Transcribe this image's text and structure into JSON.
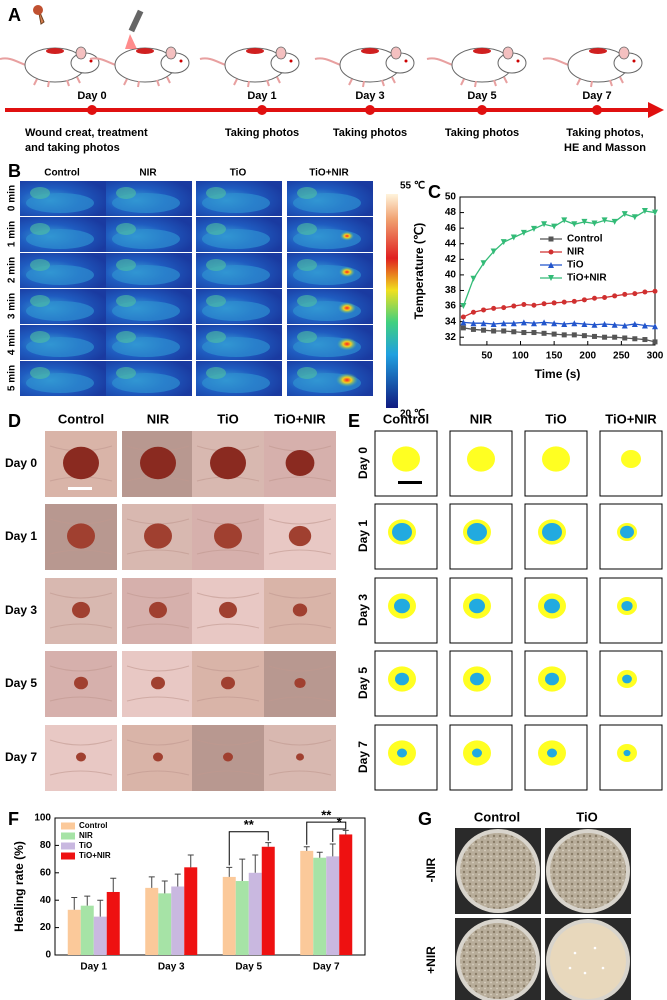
{
  "panel_labels": [
    "A",
    "B",
    "C",
    "D",
    "E",
    "F",
    "G"
  ],
  "timeline": {
    "days": [
      "Day 0",
      "Day 1",
      "Day 3",
      "Day 5",
      "Day 7"
    ],
    "captions": [
      [
        "Wound creat, treatment",
        "and taking photos"
      ],
      [
        "Taking photos"
      ],
      [
        "Taking photos"
      ],
      [
        "Taking photos"
      ],
      [
        "Taking photos,",
        "HE and Masson"
      ]
    ]
  },
  "thermal": {
    "columns": [
      "Control",
      "NIR",
      "TiO",
      "TiO+NIR"
    ],
    "rows": [
      "0 min",
      "1 min",
      "2 min",
      "3 min",
      "4 min",
      "5 min"
    ],
    "colorbar": {
      "max": "55 ℃",
      "min": "20 ℃"
    }
  },
  "wound_photos": {
    "columns": [
      "Control",
      "NIR",
      "TiO",
      "TiO+NIR"
    ],
    "rows": [
      "Day 0",
      "Day 1",
      "Day 3",
      "Day 5",
      "Day 7"
    ]
  },
  "wound_traces": {
    "columns": [
      "Control",
      "NIR",
      "TiO",
      "TiO+NIR"
    ],
    "rows": [
      "Day 0",
      "Day 1",
      "Day 3",
      "Day 5",
      "Day 7"
    ]
  },
  "bacteria": {
    "columns": [
      "Control",
      "TiO"
    ],
    "rows": [
      "-NIR",
      "+NIR"
    ]
  },
  "chart_data": [
    {
      "type": "line",
      "xlabel": "Time (s)",
      "ylabel": "Temperature (℃)",
      "x": [
        15,
        30,
        45,
        60,
        75,
        90,
        105,
        120,
        135,
        150,
        165,
        180,
        195,
        210,
        225,
        240,
        255,
        270,
        285,
        300
      ],
      "xlim": [
        10,
        300
      ],
      "xticks": [
        50,
        100,
        150,
        200,
        250,
        300
      ],
      "ylim": [
        31,
        50
      ],
      "yticks": [
        32,
        34,
        36,
        38,
        40,
        42,
        44,
        46,
        48,
        50
      ],
      "legend": "right",
      "series": [
        {
          "name": "Control",
          "color": "#555555",
          "marker": "square",
          "values": [
            33.2,
            33.0,
            32.9,
            32.8,
            32.8,
            32.7,
            32.6,
            32.6,
            32.5,
            32.4,
            32.3,
            32.3,
            32.2,
            32.1,
            32.0,
            32.0,
            31.9,
            31.8,
            31.7,
            31.4
          ]
        },
        {
          "name": "NIR",
          "color": "#d03030",
          "marker": "circle",
          "values": [
            34.6,
            35.2,
            35.5,
            35.7,
            35.8,
            36.0,
            36.2,
            36.1,
            36.3,
            36.4,
            36.5,
            36.6,
            36.8,
            37.0,
            37.1,
            37.3,
            37.5,
            37.6,
            37.8,
            37.9
          ]
        },
        {
          "name": "TiO",
          "color": "#2255cc",
          "marker": "triangle-up",
          "values": [
            33.9,
            33.8,
            33.8,
            33.7,
            33.8,
            33.8,
            33.9,
            33.8,
            33.9,
            33.8,
            33.7,
            33.8,
            33.7,
            33.6,
            33.7,
            33.6,
            33.5,
            33.7,
            33.5,
            33.4
          ]
        },
        {
          "name": "TiO+NIR",
          "color": "#33bb77",
          "marker": "triangle-down",
          "values": [
            36.0,
            39.5,
            41.5,
            43.0,
            44.2,
            44.8,
            45.4,
            45.9,
            46.5,
            46.2,
            47.0,
            46.5,
            46.8,
            46.6,
            47.0,
            46.8,
            47.8,
            47.4,
            48.2,
            48.0
          ]
        }
      ]
    },
    {
      "type": "bar",
      "ylabel": "Healing rate (%)",
      "categories": [
        "Day 1",
        "Day 3",
        "Day 5",
        "Day 7"
      ],
      "ylim": [
        0,
        100
      ],
      "yticks": [
        0,
        20,
        40,
        60,
        80,
        100
      ],
      "legend": "upper left",
      "annotations": [
        "**",
        "**",
        "*"
      ],
      "series": [
        {
          "name": "Control",
          "color": "#fbc99a",
          "values": [
            33,
            49,
            57,
            76
          ],
          "errors": [
            9,
            8,
            7,
            3
          ]
        },
        {
          "name": "NIR",
          "color": "#a6e3a6",
          "values": [
            36,
            45,
            54,
            71
          ],
          "errors": [
            7,
            9,
            16,
            4
          ]
        },
        {
          "name": "TiO",
          "color": "#c9b8e0",
          "values": [
            28,
            50,
            60,
            72
          ],
          "errors": [
            12,
            9,
            13,
            9
          ]
        },
        {
          "name": "TiO+NIR",
          "color": "#ee1111",
          "values": [
            46,
            64,
            79,
            88
          ],
          "errors": [
            10,
            9,
            3,
            3
          ]
        }
      ]
    }
  ]
}
